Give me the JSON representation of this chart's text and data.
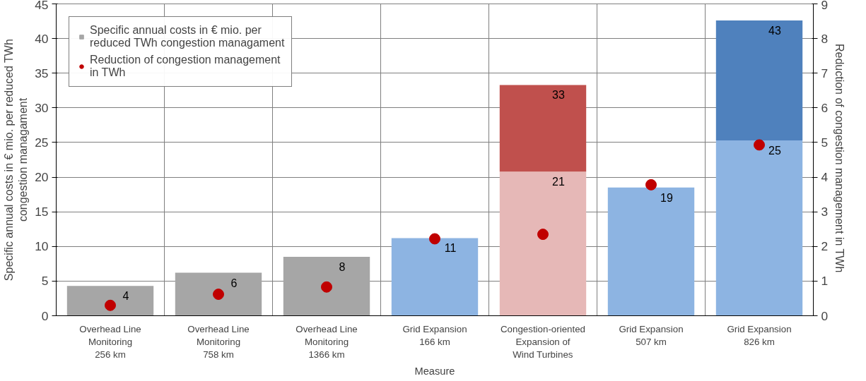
{
  "chart_data": {
    "type": "bar",
    "stacked": true,
    "categories": [
      "Overhead Line\nMonitoring\n256 km",
      "Overhead Line\nMonitoring\n758 km",
      "Overhead Line\nMonitoring\n1366 km",
      "Grid Expansion\n166 km",
      "Congestion-oriented\nExpansion of\nWind Turbines",
      "Grid Expansion\n507 km",
      "Grid Expansion\n826 km"
    ],
    "xlabel": "Measure",
    "ylabel": "Specific annual costs in € mio. per reduced TWh\ncongestion managament",
    "y2label": "Reduction of congestion management  in TWh",
    "series": [
      {
        "name": "Specific annual costs in € mio. per\nreduced TWh congestion managament",
        "color": "#a6a6a6",
        "colors": [
          "#a6a6a6",
          "#a6a6a6",
          "#a6a6a6",
          "#8db4e2",
          "#e6b8b7",
          "#8db4e2",
          "#8db4e2"
        ],
        "values": [
          4.3,
          6.2,
          8.5,
          11.2,
          20.8,
          18.5,
          25.3
        ],
        "value_labels": [
          "4",
          "6",
          "8",
          "11",
          "21",
          "19",
          "25"
        ]
      },
      {
        "colors": [
          null,
          null,
          null,
          null,
          "#c0504d",
          null,
          "#4f81bd"
        ],
        "values": [
          null,
          null,
          null,
          null,
          12.5,
          null,
          17.3
        ]
      },
      {
        "type": "scatter",
        "axis": "y2",
        "name": "Reduction of congestion management\nin TWh",
        "color": "#c00000",
        "values": [
          0.3,
          0.62,
          0.83,
          2.22,
          2.35,
          3.78,
          4.93
        ]
      }
    ],
    "ylim": [
      0,
      45
    ],
    "yticks": [
      0,
      5,
      10,
      15,
      20,
      25,
      30,
      35,
      40,
      45
    ],
    "y2lim": [
      0,
      9
    ],
    "y2ticks": [
      0,
      1,
      2,
      3,
      4,
      5,
      6,
      7,
      8,
      9
    ],
    "totals": [
      null,
      null,
      null,
      null,
      "33",
      null,
      "43"
    ],
    "grid": true,
    "legend": "top left",
    "marker": "circle"
  }
}
